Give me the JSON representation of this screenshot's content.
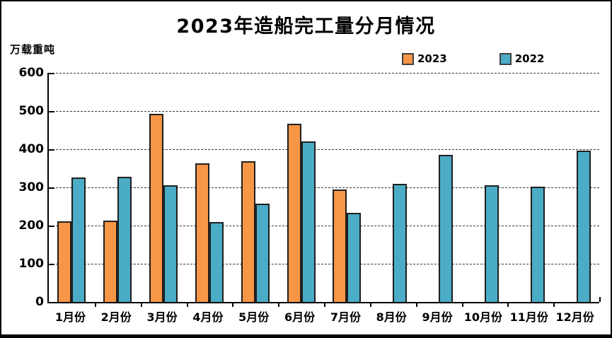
{
  "chart_data": {
    "type": "bar",
    "title": "2023年造船完工量分月情况",
    "ylabel": "万载重吨",
    "xlabel": "",
    "categories": [
      "1月份",
      "2月份",
      "3月份",
      "4月份",
      "5月份",
      "6月份",
      "7月份",
      "8月份",
      "9月份",
      "10月份",
      "11月份",
      "12月份"
    ],
    "series": [
      {
        "name": "2023",
        "color": "#F79646",
        "values": [
          211,
          213,
          493,
          363,
          368,
          466,
          295,
          null,
          null,
          null,
          null,
          null
        ]
      },
      {
        "name": "2022",
        "color": "#4BACC6",
        "values": [
          326,
          328,
          306,
          210,
          257,
          421,
          233,
          309,
          386,
          306,
          302,
          396
        ]
      }
    ],
    "ylim": [
      0,
      600
    ],
    "ytick_interval": 100,
    "ytick_labels": [
      "600",
      "500",
      "400",
      "300",
      "200",
      "100",
      "0"
    ],
    "grid": "horizontal-dashed",
    "legend_position": "top-right",
    "bar_border_color": "#1f1f1f",
    "axis_color": "#000000",
    "background_color": "#ffffff"
  }
}
